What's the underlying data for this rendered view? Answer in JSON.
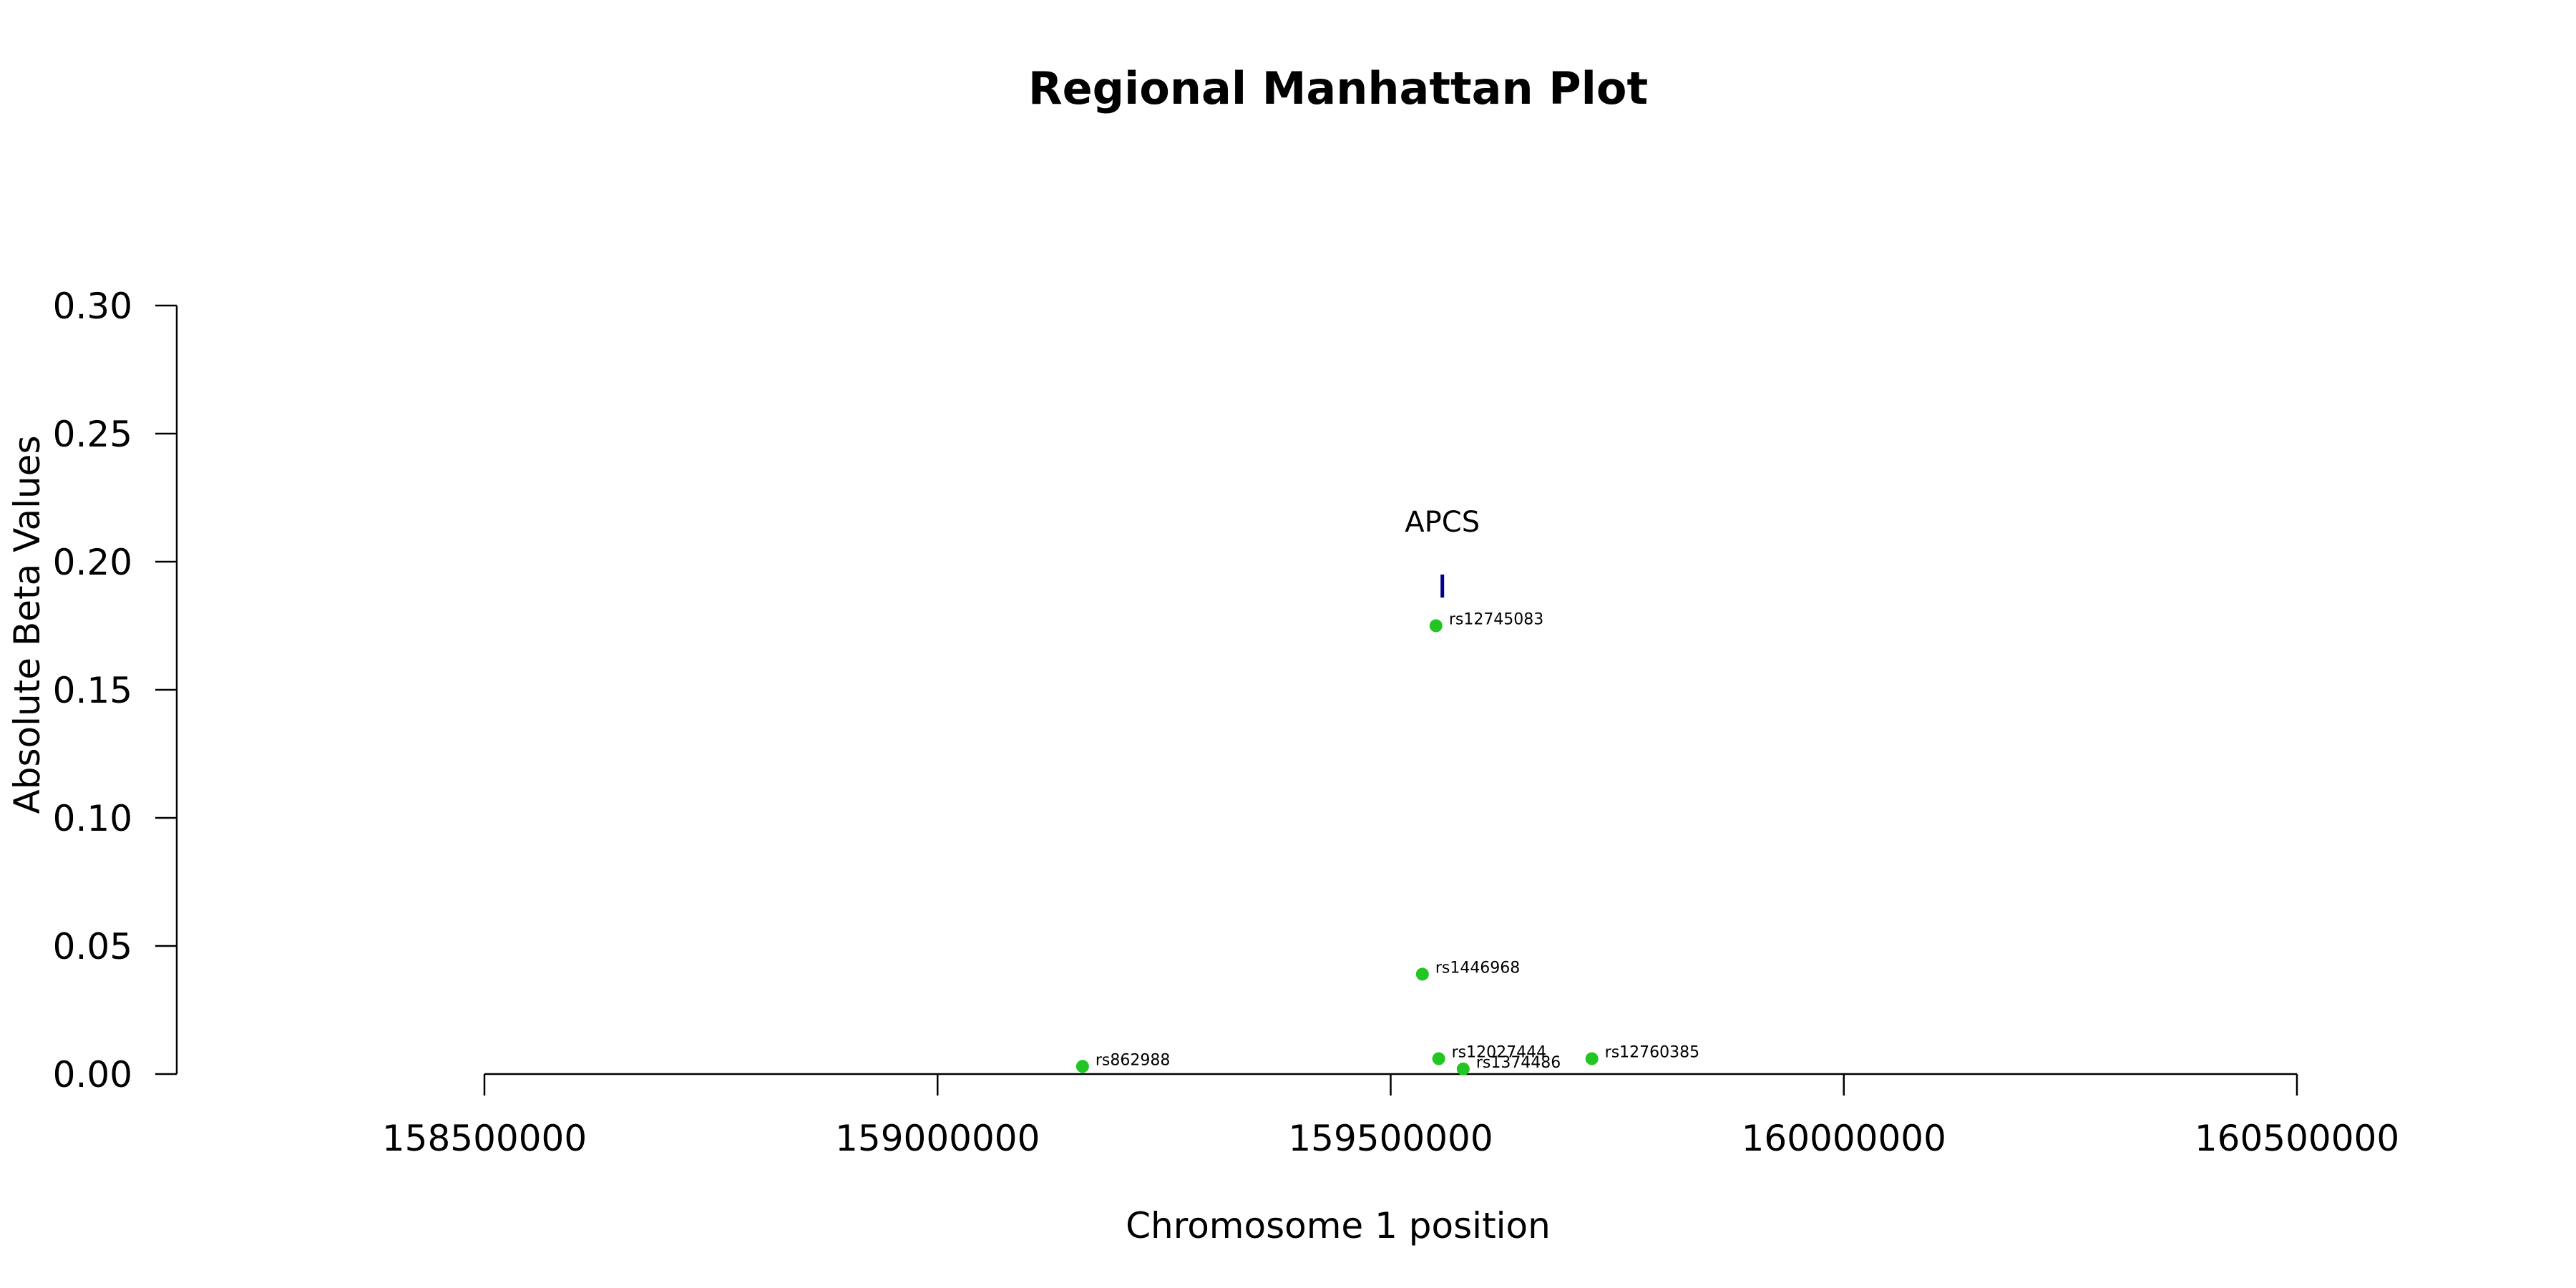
{
  "chart_data": {
    "type": "scatter",
    "title": "Regional Manhattan Plot",
    "xlabel": "Chromosome 1 position",
    "ylabel": "Absolute Beta Values",
    "xlim": [
      158500000,
      160500000
    ],
    "ylim": [
      0,
      0.3
    ],
    "x_ticks": [
      "158500000",
      "159000000",
      "159500000",
      "160000000",
      "160500000"
    ],
    "y_ticks": [
      "0.00",
      "0.05",
      "0.10",
      "0.15",
      "0.20",
      "0.25",
      "0.30"
    ],
    "point_color": "#22c522",
    "gene_color": "#00008b",
    "grid": false,
    "points": [
      {
        "label": "rs862988",
        "x": 159160000,
        "y": 0.003
      },
      {
        "label": "rs1446968",
        "x": 159535000,
        "y": 0.039
      },
      {
        "label": "rs12745083",
        "x": 159550000,
        "y": 0.175
      },
      {
        "label": "rs12027444",
        "x": 159553000,
        "y": 0.006
      },
      {
        "label": "rs1374486",
        "x": 159580000,
        "y": 0.002
      },
      {
        "label": "rs12760385",
        "x": 159722000,
        "y": 0.006
      }
    ],
    "genes": [
      {
        "name": "APCS",
        "x": 159557000,
        "y_range": [
          0.186,
          0.195
        ]
      }
    ]
  }
}
